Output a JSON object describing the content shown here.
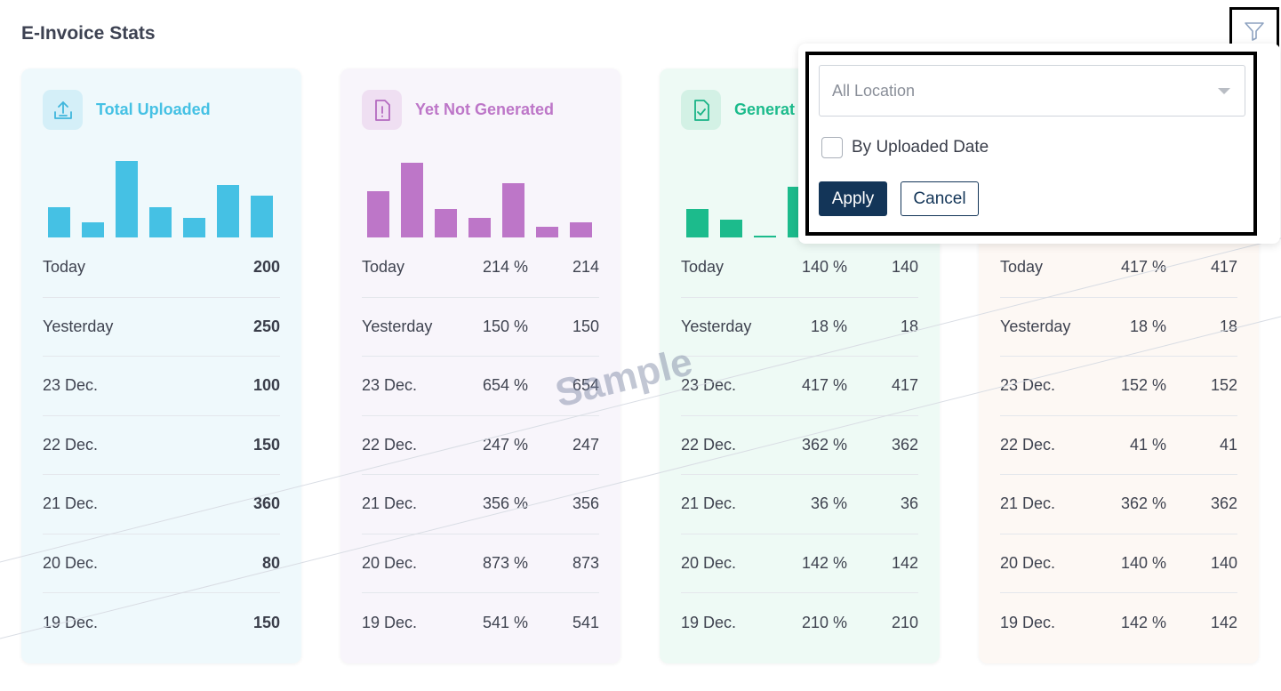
{
  "page": {
    "title": "E-Invoice Stats",
    "watermark": "Sample"
  },
  "filter": {
    "icon": "filter-icon",
    "location_placeholder": "All Location",
    "by_uploaded_date_label": "By Uploaded Date",
    "apply_label": "Apply",
    "cancel_label": "Cancel"
  },
  "cards": [
    {
      "title": "Total Uploaded",
      "icon": "upload-icon",
      "accent": "#45c1e4",
      "bg": "#eff9fc",
      "icon_bg": "#d4eff8",
      "bars": [
        14,
        7,
        35,
        14,
        9,
        24,
        19
      ],
      "rows": [
        {
          "label": "Today",
          "value": "200"
        },
        {
          "label": "Yesterday",
          "value": "250"
        },
        {
          "label": "23 Dec.",
          "value": "100"
        },
        {
          "label": "22 Dec.",
          "value": "150"
        },
        {
          "label": "21 Dec.",
          "value": "360"
        },
        {
          "label": "20 Dec.",
          "value": "80"
        },
        {
          "label": "19 Dec.",
          "value": "150"
        }
      ]
    },
    {
      "title": "Yet Not Generated",
      "icon": "document-alert-icon",
      "accent": "#bd76c8",
      "bg": "#f8f5fb",
      "icon_bg": "#efdff2",
      "bars": [
        21,
        34,
        13,
        9,
        25,
        5,
        7
      ],
      "rows": [
        {
          "label": "Today",
          "pct": "214 %",
          "value": "214"
        },
        {
          "label": "Yesterday",
          "pct": "150 %",
          "value": "150"
        },
        {
          "label": "23 Dec.",
          "pct": "654 %",
          "value": "654"
        },
        {
          "label": "22 Dec.",
          "pct": "247 %",
          "value": "247"
        },
        {
          "label": "21 Dec.",
          "pct": "356 %",
          "value": "356"
        },
        {
          "label": "20 Dec.",
          "pct": "873 %",
          "value": "873"
        },
        {
          "label": "19 Dec.",
          "pct": "541 %",
          "value": "541"
        }
      ]
    },
    {
      "title": "Generat",
      "icon": "document-check-icon",
      "accent": "#1cbb8c",
      "bg": "#eefaf5",
      "icon_bg": "#d3f1e5",
      "bars": [
        13,
        8,
        1,
        23
      ],
      "rows": [
        {
          "label": "Today",
          "pct": "140 %",
          "value": "140"
        },
        {
          "label": "Yesterday",
          "pct": "18 %",
          "value": "18"
        },
        {
          "label": "23 Dec.",
          "pct": "417 %",
          "value": "417"
        },
        {
          "label": "22 Dec.",
          "pct": "362 %",
          "value": "362"
        },
        {
          "label": "21 Dec.",
          "pct": "36 %",
          "value": "36"
        },
        {
          "label": "20 Dec.",
          "pct": "142 %",
          "value": "142"
        },
        {
          "label": "19 Dec.",
          "pct": "210 %",
          "value": "210"
        }
      ]
    },
    {
      "title": "",
      "icon": "",
      "accent": "#f0a35c",
      "bg": "#fdf8f4",
      "icon_bg": "#fbe9d8",
      "bars": [],
      "rows": [
        {
          "label": "Today",
          "pct": "417 %",
          "value": "417"
        },
        {
          "label": "Yesterday",
          "pct": "18 %",
          "value": "18"
        },
        {
          "label": "23 Dec.",
          "pct": "152 %",
          "value": "152"
        },
        {
          "label": "22 Dec.",
          "pct": "41 %",
          "value": "41"
        },
        {
          "label": "21 Dec.",
          "pct": "362 %",
          "value": "362"
        },
        {
          "label": "20 Dec.",
          "pct": "140 %",
          "value": "140"
        },
        {
          "label": "19 Dec.",
          "pct": "142 %",
          "value": "142"
        }
      ]
    }
  ]
}
